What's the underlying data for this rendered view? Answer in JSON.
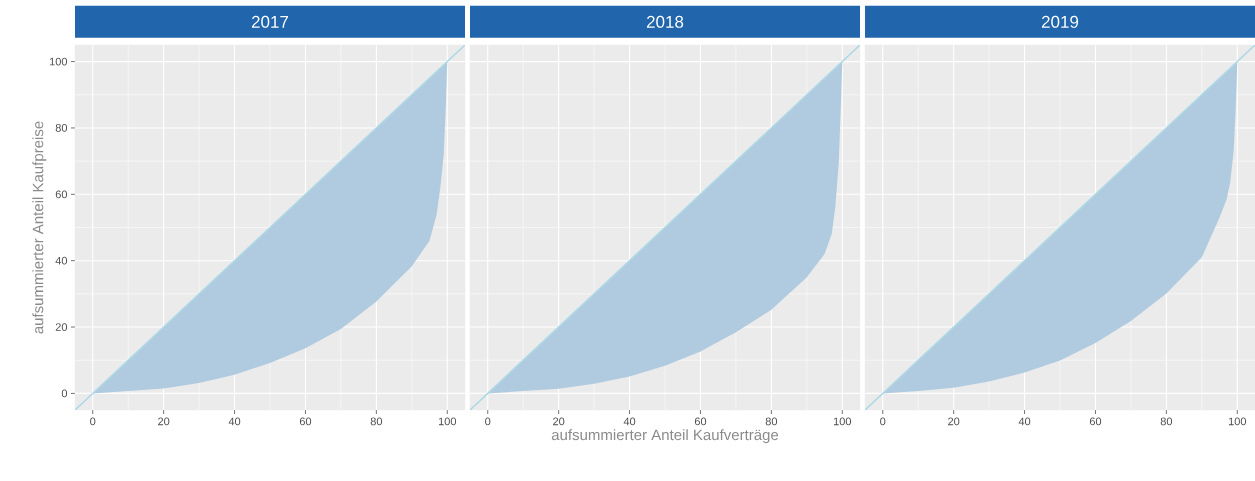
{
  "chart_data": [
    {
      "type": "area",
      "title": "2017",
      "ylabel": "aufsummierter Anteil Kaufpreise",
      "xlim": [
        -5,
        105
      ],
      "ylim": [
        -5,
        105
      ],
      "xticks": [
        0,
        20,
        40,
        60,
        80,
        100
      ],
      "yticks": [
        0,
        20,
        40,
        60,
        80,
        100
      ],
      "grid": true,
      "series": [
        {
          "color": "#b0cbdf",
          "x": [
            0,
            10,
            20,
            30,
            40,
            50,
            60,
            70,
            80,
            90,
            95,
            97,
            98,
            99,
            99.6,
            100
          ],
          "values": [
            0,
            0.7,
            1.5,
            3.1,
            5.6,
            9.2,
            13.6,
            19.4,
            27.7,
            38.3,
            46,
            53.9,
            61.7,
            72,
            87,
            100
          ]
        },
        {
          "type": "line",
          "color": "#add8e6",
          "x": [
            -5,
            105
          ],
          "values": [
            -5,
            105
          ]
        }
      ]
    },
    {
      "type": "area",
      "title": "2018",
      "xlabel": "aufsummierter Anteil Kaufverträge",
      "xlim": [
        -5,
        105
      ],
      "ylim": [
        -5,
        105
      ],
      "xticks": [
        0,
        20,
        40,
        60,
        80,
        100
      ],
      "yticks": [
        0,
        20,
        40,
        60,
        80,
        100
      ],
      "grid": true,
      "tick_labels": "x",
      "series": [
        {
          "color": "#b0cbdf",
          "x": [
            0,
            10,
            20,
            30,
            40,
            50,
            60,
            70,
            80,
            90,
            95,
            97,
            98,
            99,
            99.6,
            100
          ],
          "values": [
            0,
            0.7,
            1.4,
            2.9,
            5.1,
            8.3,
            12.6,
            18.4,
            25.2,
            35,
            42,
            48,
            55.8,
            69.4,
            87,
            100
          ]
        },
        {
          "type": "line",
          "color": "#add8e6",
          "x": [
            -5,
            105
          ],
          "values": [
            -5,
            105
          ]
        }
      ]
    },
    {
      "type": "area",
      "title": "2019",
      "xlim": [
        -5,
        105
      ],
      "ylim": [
        -5,
        105
      ],
      "xticks": [
        0,
        20,
        40,
        60,
        80,
        100
      ],
      "yticks": [
        0,
        20,
        40,
        60,
        80,
        100
      ],
      "grid": true,
      "tick_labels": "x",
      "series": [
        {
          "color": "#b0cbdf",
          "x": [
            0,
            10,
            20,
            30,
            40,
            50,
            60,
            70,
            80,
            90,
            95,
            97,
            98,
            99,
            99.6,
            100
          ],
          "values": [
            0,
            0.7,
            1.7,
            3.6,
            6.3,
            9.9,
            15.2,
            21.8,
            30.1,
            41,
            53,
            58.5,
            63.6,
            73.3,
            87,
            100
          ]
        },
        {
          "type": "line",
          "color": "#add8e6",
          "x": [
            -5,
            105
          ],
          "values": [
            -5,
            105
          ]
        }
      ]
    }
  ]
}
